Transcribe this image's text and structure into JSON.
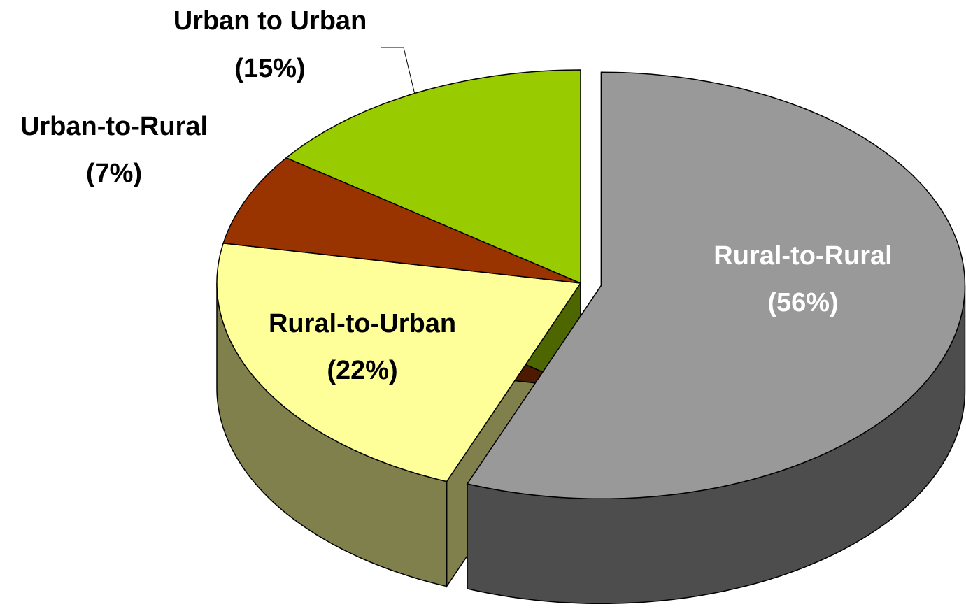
{
  "chart_data": {
    "type": "pie",
    "categories": [
      "Rural-to-Rural",
      "Rural-to-Urban",
      "Urban-to-Rural",
      "Urban to Urban"
    ],
    "values": [
      56,
      22,
      7,
      15
    ],
    "value_labels": [
      "(56%)",
      "(22%)",
      "(7%)",
      "(15%)"
    ],
    "colors": [
      "#999999",
      "#ffff99",
      "#993300",
      "#99cc00"
    ]
  }
}
